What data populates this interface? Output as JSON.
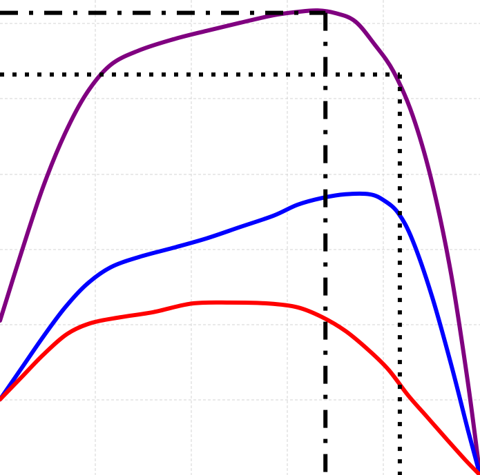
{
  "chart_data": {
    "type": "line",
    "grid": true,
    "xlim": [
      0,
      100
    ],
    "ylim": [
      0,
      100
    ],
    "series": [
      {
        "color": "#800080",
        "values": [
          [
            0,
            32.5
          ],
          [
            4.5,
            47
          ],
          [
            9,
            60.7
          ],
          [
            13.5,
            71.8
          ],
          [
            18,
            80.3
          ],
          [
            23,
            86.3
          ],
          [
            29,
            89.4
          ],
          [
            36,
            91.7
          ],
          [
            43,
            93.5
          ],
          [
            50,
            95.2
          ],
          [
            57,
            96.8
          ],
          [
            62,
            97.5
          ],
          [
            66.2,
            97.8
          ],
          [
            70,
            97.2
          ],
          [
            74,
            95.5
          ],
          [
            78,
            90.7
          ],
          [
            82,
            84.9
          ],
          [
            86,
            75.6
          ],
          [
            90,
            61.6
          ],
          [
            94,
            42.2
          ],
          [
            97.5,
            19.3
          ],
          [
            100,
            0
          ]
        ]
      },
      {
        "color": "#0000ff",
        "values": [
          [
            0,
            15.9
          ],
          [
            4.5,
            22.5
          ],
          [
            9,
            29.1
          ],
          [
            13.5,
            35.2
          ],
          [
            18,
            40.1
          ],
          [
            23,
            43.7
          ],
          [
            29,
            45.9
          ],
          [
            36,
            47.8
          ],
          [
            43,
            49.8
          ],
          [
            50,
            52.2
          ],
          [
            57,
            54.6
          ],
          [
            62,
            56.9
          ],
          [
            67,
            58.3
          ],
          [
            72,
            59.1
          ],
          [
            77,
            59.1
          ],
          [
            80,
            57.8
          ],
          [
            83,
            55.1
          ],
          [
            86,
            49.3
          ],
          [
            90,
            37.6
          ],
          [
            94,
            23.2
          ],
          [
            97.5,
            9.4
          ],
          [
            100,
            0
          ]
        ]
      },
      {
        "color": "#ff0000",
        "values": [
          [
            0,
            15.9
          ],
          [
            4.5,
            20.6
          ],
          [
            9,
            25.3
          ],
          [
            14,
            29.7
          ],
          [
            19,
            32
          ],
          [
            25,
            33.2
          ],
          [
            32,
            34.3
          ],
          [
            40,
            36.1
          ],
          [
            48,
            36.3
          ],
          [
            56,
            36.1
          ],
          [
            62,
            35.3
          ],
          [
            67,
            33.3
          ],
          [
            72,
            30.3
          ],
          [
            77,
            26.1
          ],
          [
            81,
            22.1
          ],
          [
            85,
            16.8
          ],
          [
            89,
            12.2
          ],
          [
            93,
            7.6
          ],
          [
            97,
            3.1
          ],
          [
            100,
            0
          ]
        ]
      }
    ],
    "reference_lines": [
      {
        "style": "dashdot",
        "x": 67.8,
        "y": 97.3
      },
      {
        "style": "dotted",
        "x": 83.3,
        "y": 84.3
      }
    ]
  }
}
